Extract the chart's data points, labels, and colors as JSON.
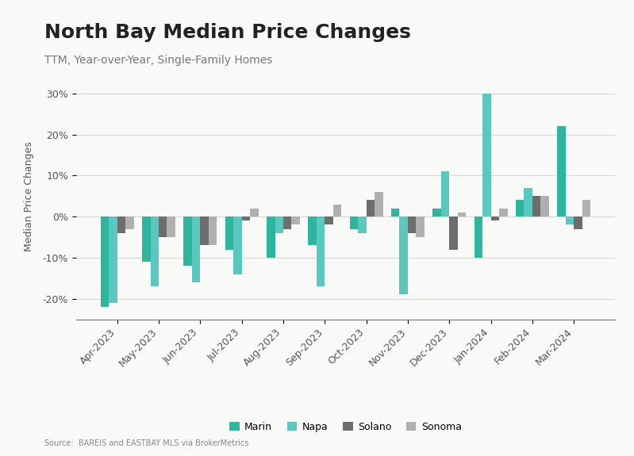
{
  "title": "North Bay Median Price Changes",
  "subtitle": "TTM, Year-over-Year, Single-Family Homes",
  "ylabel": "Median Price Changes",
  "source": "Source:  BAREIS and EASTBAY MLS via BrokerMetrics",
  "months": [
    "Apr-2023",
    "May-2023",
    "Jun-2023",
    "Jul-2023",
    "Aug-2023",
    "Sep-2023",
    "Oct-2023",
    "Nov-2023",
    "Dec-2023",
    "Jan-2024",
    "Feb-2024",
    "Mar-2024"
  ],
  "marin": [
    -22,
    -11,
    -12,
    -8,
    -10,
    -7,
    -3,
    2,
    2,
    -10,
    4,
    22
  ],
  "napa": [
    -21,
    -17,
    -16,
    -14,
    -4,
    -17,
    -4,
    -19,
    11,
    30,
    7,
    -2
  ],
  "solano": [
    -4,
    -5,
    -7,
    -1,
    -3,
    -2,
    4,
    -4,
    -8,
    -1,
    5,
    -3
  ],
  "sonoma": [
    -3,
    -5,
    -7,
    2,
    -2,
    3,
    6,
    -5,
    1,
    2,
    5,
    4
  ],
  "colors": {
    "marin": "#2db59e",
    "napa": "#5bc8c0",
    "solano": "#6d6d6d",
    "sonoma": "#b0b0b0"
  },
  "ylim": [
    -25,
    35
  ],
  "yticks": [
    -20,
    -10,
    0,
    10,
    20,
    30
  ],
  "bg_color": "#f9f9f7",
  "grid_color": "#d8d8d8",
  "bar_width": 0.2,
  "title_fontsize": 18,
  "subtitle_fontsize": 10,
  "axis_fontsize": 9,
  "ylabel_fontsize": 9,
  "legend_fontsize": 9,
  "source_fontsize": 7
}
